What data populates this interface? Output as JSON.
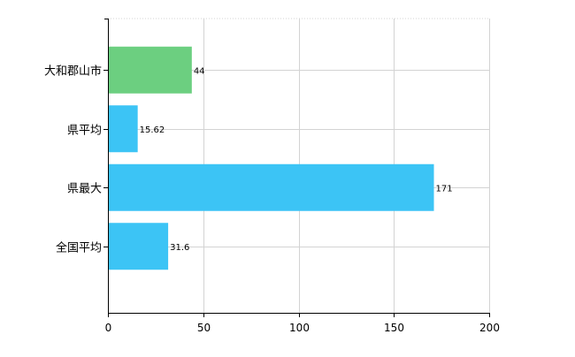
{
  "chart_data": {
    "type": "bar",
    "orientation": "horizontal",
    "categories": [
      "大和郡山市",
      "県平均",
      "県最大",
      "全国平均"
    ],
    "values": [
      44,
      15.62,
      171,
      31.6
    ],
    "value_labels": [
      "44",
      "15.62",
      "171",
      "31.6"
    ],
    "bar_colors": [
      "#6ccf80",
      "#3cc4f5",
      "#3cc4f5",
      "#3cc4f5"
    ],
    "xlim": [
      0,
      200
    ],
    "xticks": [
      0,
      50,
      100,
      150,
      200
    ],
    "xtick_labels": [
      "0",
      "50",
      "100",
      "150",
      "200"
    ],
    "grid": true,
    "gridline_color": "#d3d3d3",
    "axis_color": "#000000",
    "title": "",
    "xlabel": "",
    "ylabel": ""
  }
}
